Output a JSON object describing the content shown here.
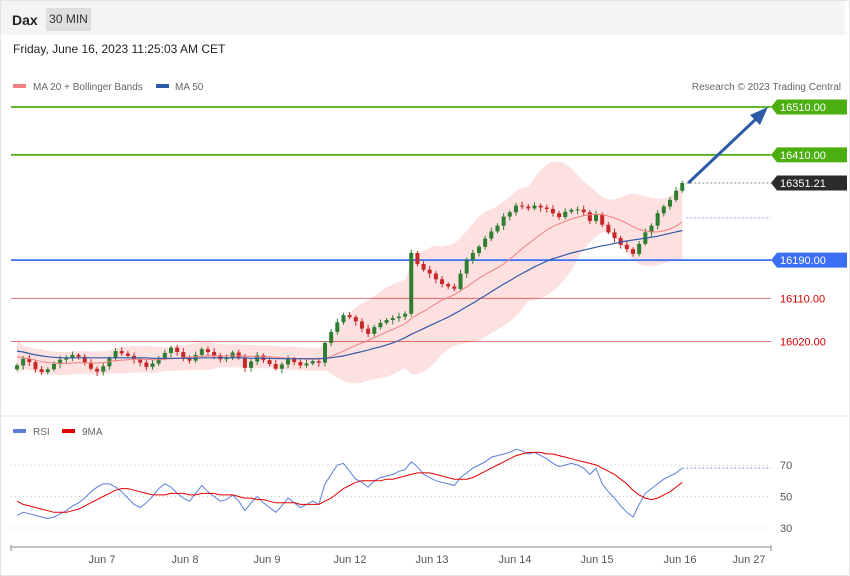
{
  "header": {
    "symbol": "Dax",
    "timeframe": "30 MIN",
    "date": "Friday, June 16, 2023 11:25:03 AM CET"
  },
  "legend": {
    "bb_label": "MA 20 + Bollinger Bands",
    "ma50_label": "MA 50",
    "copyright": "Research © 2023 Trading Central",
    "bb_color": "#f08080",
    "ma50_color": "#2f5aa8"
  },
  "rsi_legend": {
    "rsi_label": "RSI",
    "ma_label": "9MA",
    "rsi_color": "#5b7fd9",
    "ma_color": "#e00000"
  },
  "levels": [
    {
      "value": 16510.0,
      "label": "16510.00",
      "color": "#4caf10",
      "style": "solid"
    },
    {
      "value": 16410.0,
      "label": "16410.00",
      "color": "#4caf10",
      "style": "solid"
    },
    {
      "value": 16351.21,
      "label": "16351.21",
      "color": "#333333",
      "style": "current"
    },
    {
      "value": 16190.0,
      "label": "16190.00",
      "color": "#3b6ff5",
      "style": "solid"
    },
    {
      "value": 16110.0,
      "label": "16110.00",
      "color": "#d00000",
      "style": "thin"
    },
    {
      "value": 16020.0,
      "label": "16020.00",
      "color": "#d00000",
      "style": "thin"
    }
  ],
  "chart_data": [
    {
      "type": "candlestick",
      "ylim": [
        15930,
        16580
      ],
      "x_labels": [
        "Jun 7",
        "Jun 8",
        "Jun 9",
        "Jun 12",
        "Jun 13",
        "Jun 14",
        "Jun 15",
        "Jun 16",
        "Jun 27"
      ],
      "current_price": 16351.21,
      "target": 16510.0,
      "close": [
        15970,
        15984,
        15977,
        15962,
        15956,
        15962,
        15973,
        15982,
        15986,
        15992,
        15988,
        15975,
        15963,
        15957,
        15968,
        15985,
        16000,
        15995,
        15990,
        15983,
        15976,
        15967,
        15974,
        15985,
        15996,
        16007,
        15998,
        15986,
        15980,
        15992,
        16004,
        15998,
        15991,
        15983,
        15986,
        15997,
        15986,
        15965,
        15978,
        15991,
        15981,
        15973,
        15963,
        15972,
        15984,
        15977,
        15970,
        15974,
        15979,
        15976,
        16017,
        16040,
        16060,
        16075,
        16071,
        16062,
        16047,
        16036,
        16050,
        16059,
        16065,
        16069,
        16072,
        16078,
        16205,
        16182,
        16170,
        16162,
        16150,
        16140,
        16135,
        16130,
        16162,
        16190,
        16205,
        16218,
        16235,
        16250,
        16262,
        16281,
        16290,
        16304,
        16302,
        16298,
        16304,
        16300,
        16297,
        16288,
        16280,
        16291,
        16295,
        16296,
        16290,
        16272,
        16286,
        16264,
        16248,
        16236,
        16222,
        16213,
        16203,
        16224,
        16248,
        16262,
        16288,
        16302,
        16316,
        16335,
        16351.21
      ],
      "ma20": [
        15988,
        15986,
        15984,
        15981,
        15978,
        15976,
        15975,
        15974,
        15974,
        15975,
        15976,
        15976,
        15975,
        15975,
        15976,
        15978,
        15980,
        15981,
        15982,
        15983,
        15983,
        15983,
        15982,
        15982,
        15983,
        15984,
        15985,
        15986,
        15987,
        15988,
        15989,
        15990,
        15990,
        15990,
        15990,
        15990,
        15990,
        15989,
        15989,
        15988,
        15988,
        15988,
        15987,
        15986,
        15985,
        15985,
        15984,
        15983,
        15983,
        15983,
        15985,
        15989,
        15994,
        16000,
        16006,
        16012,
        16017,
        16022,
        16028,
        16034,
        16040,
        16045,
        16051,
        16057,
        16068,
        16076,
        16083,
        16091,
        16099,
        16106,
        16112,
        16118,
        16126,
        16134,
        16143,
        16152,
        16160,
        16167,
        16174,
        16182,
        16192,
        16203,
        16214,
        16224,
        16234,
        16244,
        16253,
        16260,
        16266,
        16271,
        16276,
        16280,
        16283,
        16285,
        16286,
        16285,
        16282,
        16278,
        16273,
        16267,
        16260,
        16254,
        16251,
        16249,
        16249,
        16251,
        16255,
        16261,
        16270
      ],
      "ma50": [
        16000,
        15998,
        15995,
        15992,
        15990,
        15988,
        15987,
        15986,
        15986,
        15986,
        15986,
        15986,
        15986,
        15986,
        15986,
        15986,
        15986,
        15986,
        15986,
        15986,
        15986,
        15986,
        15985,
        15985,
        15985,
        15985,
        15985,
        15985,
        15985,
        15985,
        15986,
        15986,
        15986,
        15986,
        15986,
        15986,
        15986,
        15986,
        15985,
        15985,
        15985,
        15985,
        15984,
        15984,
        15984,
        15984,
        15984,
        15984,
        15984,
        15984,
        15985,
        15986,
        15988,
        15990,
        15993,
        15996,
        15999,
        16002,
        16006,
        16009,
        16013,
        16017,
        16022,
        16028,
        16035,
        16041,
        16047,
        16053,
        16059,
        16065,
        16071,
        16078,
        16085,
        16093,
        16100,
        16108,
        16116,
        16124,
        16132,
        16140,
        16147,
        16155,
        16162,
        16169,
        16176,
        16182,
        16188,
        16193,
        16197,
        16201,
        16205,
        16208,
        16211,
        16214,
        16217,
        16220,
        16222,
        16225,
        16228,
        16230,
        16232,
        16234,
        16236,
        16238,
        16240,
        16243,
        16246,
        16249,
        16252
      ]
    },
    {
      "type": "line",
      "ylim": [
        15,
        85
      ],
      "yticks": [
        30,
        50,
        70
      ],
      "series": [
        {
          "name": "RSI",
          "values": [
            38,
            40,
            39,
            38,
            37,
            36,
            37,
            39,
            41,
            44,
            46,
            49,
            53,
            56,
            58,
            58,
            56,
            53,
            49,
            45,
            43,
            46,
            50,
            55,
            58,
            56,
            52,
            49,
            47,
            52,
            57,
            53,
            50,
            47,
            48,
            51,
            47,
            41,
            46,
            50,
            46,
            43,
            40,
            44,
            49,
            46,
            43,
            45,
            47,
            45,
            58,
            64,
            70,
            71,
            66,
            61,
            59,
            56,
            60,
            62,
            63,
            64,
            66,
            67,
            72,
            69,
            64,
            62,
            60,
            59,
            58,
            57,
            62,
            65,
            68,
            70,
            72,
            75,
            76,
            77,
            78,
            80,
            79,
            77,
            78,
            76,
            74,
            71,
            69,
            70,
            71,
            70,
            68,
            64,
            68,
            58,
            53,
            49,
            44,
            40,
            37,
            45,
            52,
            55,
            58,
            61,
            63,
            65,
            68
          ]
        },
        {
          "name": "9MA",
          "values": [
            47,
            45,
            44,
            43,
            42,
            41,
            40,
            40,
            40,
            41,
            42,
            44,
            46,
            48,
            50,
            52,
            54,
            55,
            55,
            54,
            53,
            52,
            51,
            51,
            51,
            52,
            52,
            52,
            51,
            51,
            52,
            52,
            52,
            51,
            51,
            51,
            50,
            49,
            49,
            48,
            48,
            47,
            46,
            46,
            46,
            46,
            45,
            45,
            45,
            45,
            47,
            49,
            52,
            55,
            57,
            59,
            60,
            60,
            60,
            60,
            61,
            61,
            62,
            63,
            64,
            65,
            65,
            65,
            64,
            63,
            62,
            61,
            61,
            61,
            62,
            64,
            66,
            68,
            70,
            72,
            74,
            76,
            77,
            78,
            78,
            78,
            77,
            77,
            76,
            75,
            74,
            73,
            72,
            71,
            70,
            68,
            66,
            64,
            61,
            58,
            54,
            51,
            49,
            48,
            49,
            51,
            53,
            56,
            59
          ]
        }
      ]
    }
  ]
}
